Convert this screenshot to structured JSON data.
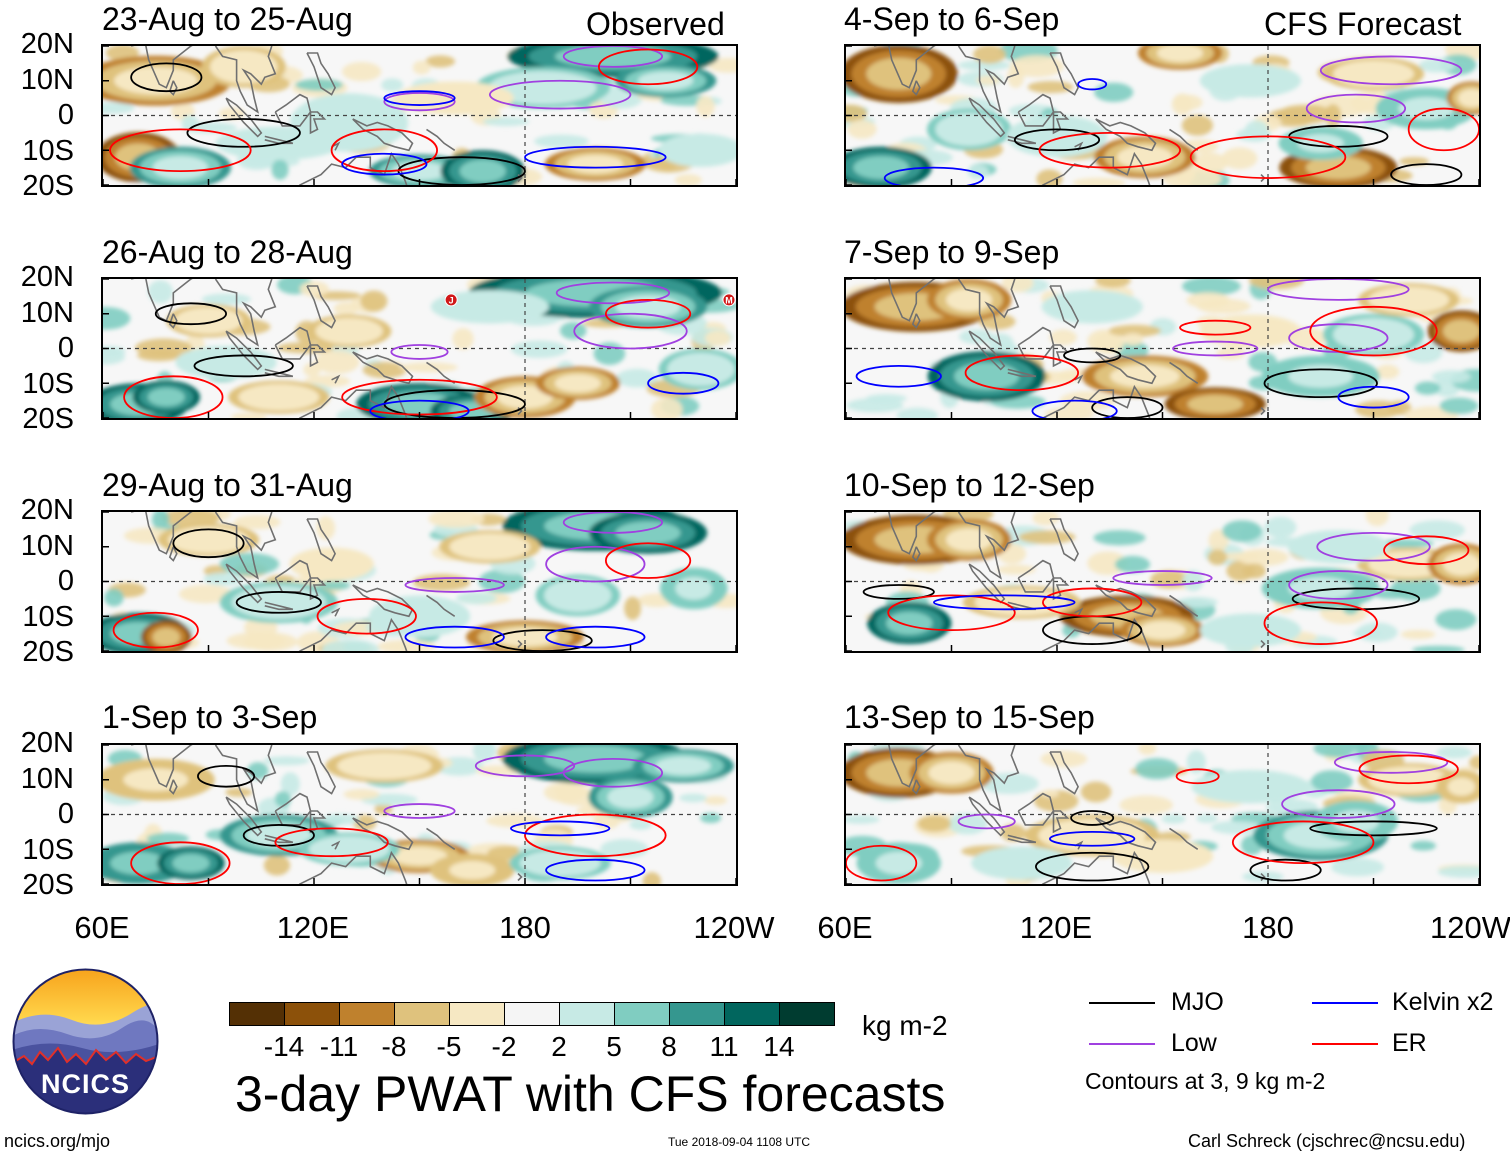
{
  "chart_data": {
    "type": "heatmap",
    "title": "3-day PWAT with CFS forecasts",
    "variable": "PWAT anomaly",
    "units": "kg m-2",
    "x_axis": {
      "range_deg_east": [
        60,
        240
      ],
      "ticks": [
        "60E",
        "120E",
        "180",
        "120W"
      ]
    },
    "y_axis": {
      "range_deg": [
        -20,
        20
      ],
      "ticks": [
        "20N",
        "10N",
        "0",
        "10S",
        "20S"
      ]
    },
    "observed_label": "Observed",
    "forecast_label": "CFS Forecast",
    "panels": [
      {
        "id": "obs1",
        "period": "23-Aug to 25-Aug",
        "source": "Observed"
      },
      {
        "id": "obs2",
        "period": "26-Aug to 28-Aug",
        "source": "Observed"
      },
      {
        "id": "obs3",
        "period": "29-Aug to 31-Aug",
        "source": "Observed"
      },
      {
        "id": "obs4",
        "period": "1-Sep to 3-Sep",
        "source": "Observed"
      },
      {
        "id": "fc1",
        "period": "4-Sep to 6-Sep",
        "source": "CFS Forecast"
      },
      {
        "id": "fc2",
        "period": "7-Sep to 9-Sep",
        "source": "CFS Forecast"
      },
      {
        "id": "fc3",
        "period": "10-Sep to 12-Sep",
        "source": "CFS Forecast"
      },
      {
        "id": "fc4",
        "period": "13-Sep to 15-Sep",
        "source": "CFS Forecast"
      }
    ],
    "colorbar": {
      "labels": [
        "-14",
        "-11",
        "-8",
        "-5",
        "-2",
        "2",
        "5",
        "8",
        "11",
        "14"
      ],
      "colors": [
        "#543005",
        "#8c510a",
        "#bf812d",
        "#dfc27d",
        "#f6e8c3",
        "#f5f5f5",
        "#c7eae5",
        "#80cdc1",
        "#35978f",
        "#01665e",
        "#003c30"
      ],
      "units": "kg m-2"
    },
    "contour_legend": [
      {
        "name": "MJO",
        "color": "#000000"
      },
      {
        "name": "Kelvin x2",
        "color": "#0000ff"
      },
      {
        "name": "Low",
        "color": "#a040e0"
      },
      {
        "name": "ER",
        "color": "#ff0000"
      }
    ],
    "contour_note": "Contours at 3, 9 kg m-2",
    "storm_markers": [
      {
        "panel": "obs2",
        "label": "J",
        "lon": 159,
        "lat": 14
      },
      {
        "panel": "obs2",
        "label": "M",
        "lon": 239,
        "lat": 14
      }
    ]
  },
  "footer": {
    "logo_text": "NCICS",
    "site": "ncics.org/mjo",
    "timestamp": "Tue 2018-09-04 1108 UTC",
    "author": "Carl Schreck (cjschrec@ncsu.edu)"
  }
}
